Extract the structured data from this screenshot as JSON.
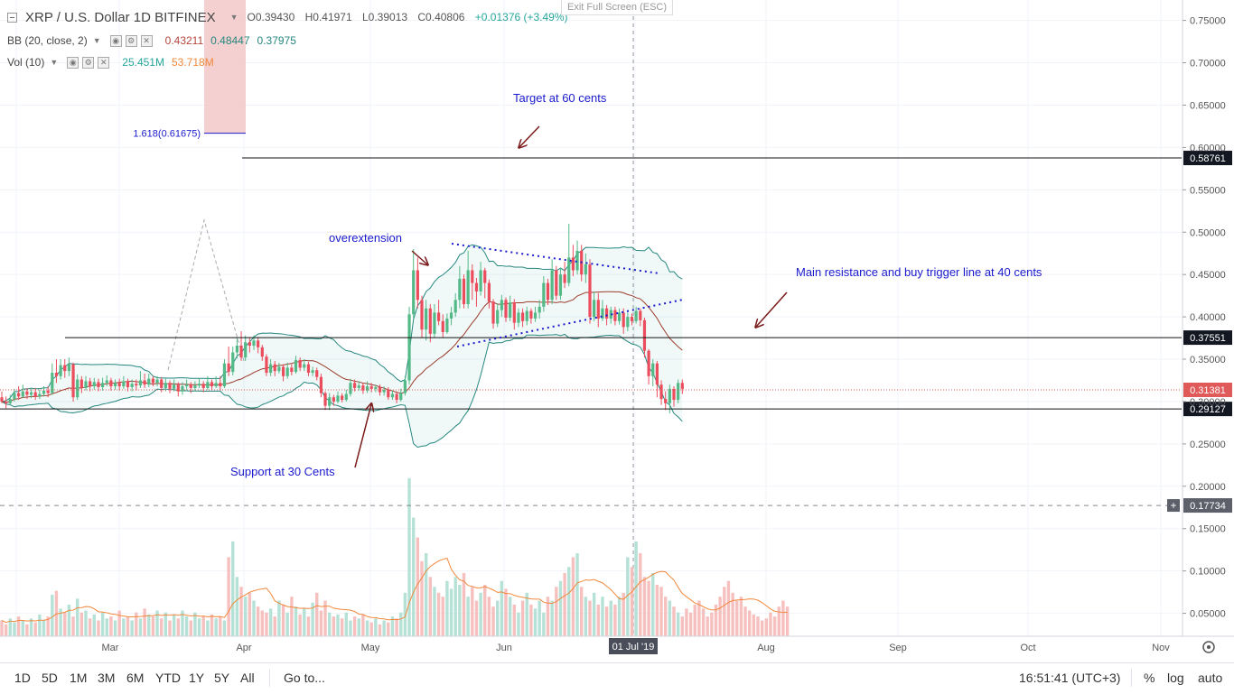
{
  "header": {
    "symbol": "XRP / U.S. Dollar  1D  BITFINEX",
    "open": "O0.39430",
    "high": "H0.41971",
    "low": "L0.39013",
    "close": "C0.40806",
    "change": "+0.01376 (+3.49%)",
    "bb_label": "BB (20, close, 2)",
    "bb_values": [
      "0.43211",
      "0.48447",
      "0.37975"
    ],
    "vol_label": "Vol (10)",
    "vol_values": [
      "25.451M",
      "53.718M"
    ],
    "exit_fullscreen": "Exit Full Screen (ESC)"
  },
  "bottom": {
    "timeframes": [
      "1D",
      "5D",
      "1M",
      "3M",
      "6M",
      "YTD",
      "1Y",
      "5Y",
      "All"
    ],
    "goto": "Go to...",
    "clock": "16:51:41 (UTC+3)",
    "pct": "%",
    "log": "log",
    "auto": "auto"
  },
  "colors": {
    "up": "#26a69a",
    "down": "#ef5350",
    "annotation": "#1a1acc",
    "arrow": "#7a1a1a",
    "bb_band": "#26877f",
    "bb_mid": "#9c3b2b",
    "vol_ma": "#f2883a"
  },
  "chart_data": {
    "type": "candlestick",
    "title": "XRP / U.S. Dollar  1D  BITFINEX",
    "y_range": [
      0.0,
      0.77
    ],
    "price_ticks": [
      "0.75000",
      "0.70000",
      "0.65000",
      "0.60000",
      "0.55000",
      "0.50000",
      "0.45000",
      "0.40000",
      "0.35000",
      "0.30000",
      "0.25000",
      "0.20000",
      "0.15000",
      "0.10000",
      "0.05000"
    ],
    "x_labels": [
      "Mar",
      "Apr",
      "May",
      "Jun",
      "01 Jul '19",
      "Aug",
      "Sep",
      "Oct",
      "Nov"
    ],
    "x_range_days": [
      0,
      300
    ],
    "date_index_note_start": "2019-02-01",
    "highlighted_x_label": "01 Jul '19",
    "candles": [
      [
        0.305,
        0.3,
        0.312,
        0.298
      ],
      [
        0.3,
        0.298,
        0.306,
        0.292
      ],
      [
        0.298,
        0.303,
        0.308,
        0.296
      ],
      [
        0.303,
        0.31,
        0.315,
        0.3
      ],
      [
        0.31,
        0.306,
        0.318,
        0.302
      ],
      [
        0.306,
        0.312,
        0.32,
        0.304
      ],
      [
        0.312,
        0.308,
        0.316,
        0.303
      ],
      [
        0.308,
        0.311,
        0.316,
        0.304
      ],
      [
        0.311,
        0.306,
        0.316,
        0.302
      ],
      [
        0.306,
        0.309,
        0.314,
        0.303
      ],
      [
        0.309,
        0.313,
        0.318,
        0.306
      ],
      [
        0.313,
        0.31,
        0.318,
        0.305
      ],
      [
        0.31,
        0.334,
        0.345,
        0.308
      ],
      [
        0.334,
        0.33,
        0.35,
        0.322
      ],
      [
        0.33,
        0.343,
        0.35,
        0.326
      ],
      [
        0.343,
        0.336,
        0.35,
        0.328
      ],
      [
        0.336,
        0.344,
        0.352,
        0.33
      ],
      [
        0.344,
        0.305,
        0.346,
        0.3
      ],
      [
        0.305,
        0.326,
        0.332,
        0.302
      ],
      [
        0.326,
        0.316,
        0.33,
        0.31
      ],
      [
        0.316,
        0.324,
        0.33,
        0.313
      ],
      [
        0.324,
        0.318,
        0.328,
        0.312
      ],
      [
        0.318,
        0.323,
        0.328,
        0.314
      ],
      [
        0.323,
        0.317,
        0.327,
        0.312
      ],
      [
        0.317,
        0.322,
        0.328,
        0.313
      ],
      [
        0.322,
        0.325,
        0.331,
        0.318
      ],
      [
        0.325,
        0.318,
        0.328,
        0.313
      ],
      [
        0.318,
        0.322,
        0.326,
        0.314
      ],
      [
        0.322,
        0.318,
        0.327,
        0.313
      ],
      [
        0.318,
        0.324,
        0.33,
        0.315
      ],
      [
        0.324,
        0.317,
        0.327,
        0.312
      ],
      [
        0.317,
        0.321,
        0.326,
        0.312
      ],
      [
        0.321,
        0.319,
        0.326,
        0.313
      ],
      [
        0.319,
        0.325,
        0.336,
        0.316
      ],
      [
        0.325,
        0.32,
        0.333,
        0.316
      ],
      [
        0.32,
        0.327,
        0.333,
        0.317
      ],
      [
        0.327,
        0.322,
        0.33,
        0.318
      ],
      [
        0.322,
        0.326,
        0.33,
        0.318
      ],
      [
        0.326,
        0.316,
        0.329,
        0.311
      ],
      [
        0.316,
        0.322,
        0.327,
        0.312
      ],
      [
        0.322,
        0.315,
        0.325,
        0.31
      ],
      [
        0.315,
        0.32,
        0.326,
        0.312
      ],
      [
        0.32,
        0.312,
        0.323,
        0.306
      ],
      [
        0.312,
        0.318,
        0.323,
        0.308
      ],
      [
        0.318,
        0.32,
        0.326,
        0.314
      ],
      [
        0.32,
        0.316,
        0.323,
        0.31
      ],
      [
        0.316,
        0.319,
        0.324,
        0.312
      ],
      [
        0.319,
        0.321,
        0.327,
        0.316
      ],
      [
        0.321,
        0.316,
        0.324,
        0.311
      ],
      [
        0.316,
        0.323,
        0.33,
        0.314
      ],
      [
        0.323,
        0.318,
        0.326,
        0.314
      ],
      [
        0.318,
        0.322,
        0.33,
        0.316
      ],
      [
        0.322,
        0.318,
        0.33,
        0.313
      ],
      [
        0.318,
        0.345,
        0.35,
        0.316
      ],
      [
        0.345,
        0.335,
        0.365,
        0.33
      ],
      [
        0.335,
        0.358,
        0.365,
        0.331
      ],
      [
        0.358,
        0.366,
        0.375,
        0.351
      ],
      [
        0.366,
        0.352,
        0.383,
        0.348
      ],
      [
        0.352,
        0.37,
        0.378,
        0.348
      ],
      [
        0.37,
        0.366,
        0.376,
        0.358
      ],
      [
        0.366,
        0.372,
        0.378,
        0.361
      ],
      [
        0.372,
        0.364,
        0.376,
        0.357
      ],
      [
        0.364,
        0.353,
        0.367,
        0.348
      ],
      [
        0.353,
        0.334,
        0.356,
        0.33
      ],
      [
        0.334,
        0.344,
        0.35,
        0.33
      ],
      [
        0.344,
        0.336,
        0.348,
        0.33
      ],
      [
        0.336,
        0.341,
        0.346,
        0.333
      ],
      [
        0.341,
        0.33,
        0.344,
        0.324
      ],
      [
        0.33,
        0.34,
        0.346,
        0.327
      ],
      [
        0.34,
        0.335,
        0.344,
        0.331
      ],
      [
        0.335,
        0.349,
        0.354,
        0.333
      ],
      [
        0.349,
        0.34,
        0.352,
        0.336
      ],
      [
        0.34,
        0.344,
        0.35,
        0.336
      ],
      [
        0.344,
        0.334,
        0.347,
        0.33
      ],
      [
        0.334,
        0.337,
        0.341,
        0.33
      ],
      [
        0.337,
        0.329,
        0.34,
        0.325
      ],
      [
        0.329,
        0.31,
        0.333,
        0.305
      ],
      [
        0.31,
        0.295,
        0.312,
        0.29
      ],
      [
        0.295,
        0.305,
        0.31,
        0.29
      ],
      [
        0.305,
        0.3,
        0.308,
        0.295
      ],
      [
        0.3,
        0.307,
        0.312,
        0.298
      ],
      [
        0.307,
        0.302,
        0.31,
        0.299
      ],
      [
        0.302,
        0.309,
        0.314,
        0.3
      ],
      [
        0.309,
        0.322,
        0.327,
        0.306
      ],
      [
        0.322,
        0.316,
        0.326,
        0.312
      ],
      [
        0.316,
        0.319,
        0.324,
        0.313
      ],
      [
        0.319,
        0.313,
        0.322,
        0.309
      ],
      [
        0.313,
        0.318,
        0.324,
        0.31
      ],
      [
        0.318,
        0.315,
        0.322,
        0.311
      ],
      [
        0.315,
        0.317,
        0.32,
        0.311
      ],
      [
        0.317,
        0.311,
        0.32,
        0.307
      ],
      [
        0.311,
        0.314,
        0.318,
        0.307
      ],
      [
        0.314,
        0.305,
        0.317,
        0.302
      ],
      [
        0.305,
        0.309,
        0.313,
        0.302
      ],
      [
        0.309,
        0.302,
        0.312,
        0.298
      ],
      [
        0.302,
        0.31,
        0.315,
        0.3
      ],
      [
        0.31,
        0.325,
        0.33,
        0.307
      ],
      [
        0.325,
        0.403,
        0.412,
        0.32
      ],
      [
        0.403,
        0.455,
        0.48,
        0.398
      ],
      [
        0.455,
        0.42,
        0.47,
        0.41
      ],
      [
        0.42,
        0.385,
        0.425,
        0.375
      ],
      [
        0.385,
        0.41,
        0.42,
        0.372
      ],
      [
        0.41,
        0.38,
        0.415,
        0.37
      ],
      [
        0.38,
        0.405,
        0.415,
        0.375
      ],
      [
        0.405,
        0.395,
        0.42,
        0.39
      ],
      [
        0.395,
        0.382,
        0.403,
        0.376
      ],
      [
        0.382,
        0.398,
        0.404,
        0.38
      ],
      [
        0.398,
        0.405,
        0.412,
        0.39
      ],
      [
        0.405,
        0.42,
        0.428,
        0.4
      ],
      [
        0.42,
        0.445,
        0.46,
        0.41
      ],
      [
        0.445,
        0.415,
        0.45,
        0.41
      ],
      [
        0.415,
        0.455,
        0.478,
        0.41
      ],
      [
        0.455,
        0.44,
        0.462,
        0.42
      ],
      [
        0.44,
        0.43,
        0.446,
        0.412
      ],
      [
        0.43,
        0.455,
        0.465,
        0.425
      ],
      [
        0.455,
        0.44,
        0.458,
        0.422
      ],
      [
        0.44,
        0.418,
        0.444,
        0.41
      ],
      [
        0.418,
        0.392,
        0.421,
        0.386
      ],
      [
        0.392,
        0.408,
        0.416,
        0.388
      ],
      [
        0.408,
        0.42,
        0.426,
        0.4
      ],
      [
        0.42,
        0.399,
        0.423,
        0.394
      ],
      [
        0.399,
        0.417,
        0.425,
        0.395
      ],
      [
        0.417,
        0.393,
        0.421,
        0.385
      ],
      [
        0.393,
        0.405,
        0.41,
        0.388
      ],
      [
        0.405,
        0.395,
        0.41,
        0.388
      ],
      [
        0.395,
        0.407,
        0.412,
        0.39
      ],
      [
        0.407,
        0.398,
        0.41,
        0.392
      ],
      [
        0.398,
        0.405,
        0.412,
        0.394
      ],
      [
        0.405,
        0.412,
        0.42,
        0.398
      ],
      [
        0.412,
        0.44,
        0.448,
        0.406
      ],
      [
        0.44,
        0.42,
        0.445,
        0.414
      ],
      [
        0.42,
        0.455,
        0.468,
        0.415
      ],
      [
        0.455,
        0.425,
        0.46,
        0.42
      ],
      [
        0.425,
        0.45,
        0.458,
        0.42
      ],
      [
        0.45,
        0.44,
        0.465,
        0.434
      ],
      [
        0.44,
        0.47,
        0.51,
        0.436
      ],
      [
        0.47,
        0.455,
        0.485,
        0.448
      ],
      [
        0.455,
        0.478,
        0.49,
        0.45
      ],
      [
        0.478,
        0.45,
        0.485,
        0.442
      ],
      [
        0.45,
        0.462,
        0.475,
        0.44
      ],
      [
        0.462,
        0.4,
        0.468,
        0.392
      ],
      [
        0.4,
        0.42,
        0.43,
        0.395
      ],
      [
        0.42,
        0.398,
        0.428,
        0.388
      ],
      [
        0.398,
        0.41,
        0.42,
        0.395
      ],
      [
        0.41,
        0.398,
        0.414,
        0.39
      ],
      [
        0.398,
        0.408,
        0.412,
        0.392
      ],
      [
        0.408,
        0.395,
        0.412,
        0.39
      ],
      [
        0.395,
        0.405,
        0.41,
        0.391
      ],
      [
        0.405,
        0.388,
        0.41,
        0.38
      ],
      [
        0.388,
        0.4,
        0.405,
        0.383
      ],
      [
        0.4,
        0.395,
        0.404,
        0.39
      ],
      [
        0.395,
        0.407,
        0.412,
        0.392
      ],
      [
        0.407,
        0.396,
        0.41,
        0.389
      ],
      [
        0.396,
        0.36,
        0.399,
        0.352
      ],
      [
        0.36,
        0.33,
        0.362,
        0.32
      ],
      [
        0.33,
        0.345,
        0.35,
        0.318
      ],
      [
        0.345,
        0.32,
        0.348,
        0.305
      ],
      [
        0.32,
        0.303,
        0.325,
        0.296
      ],
      [
        0.303,
        0.298,
        0.312,
        0.29
      ],
      [
        0.298,
        0.315,
        0.32,
        0.286
      ],
      [
        0.315,
        0.302,
        0.318,
        0.294
      ],
      [
        0.302,
        0.322,
        0.326,
        0.298
      ],
      [
        0.322,
        0.315,
        0.326,
        0.309
      ]
    ],
    "volume_m": [
      8,
      6,
      9,
      7,
      10,
      8,
      6,
      9,
      7,
      11,
      8,
      10,
      21,
      23,
      14,
      12,
      16,
      10,
      19,
      12,
      13,
      9,
      11,
      8,
      12,
      9,
      10,
      8,
      13,
      9,
      10,
      8,
      12,
      9,
      14,
      11,
      10,
      13,
      9,
      12,
      8,
      11,
      9,
      13,
      10,
      8,
      12,
      9,
      10,
      8,
      11,
      9,
      10,
      8,
      40,
      48,
      30,
      25,
      20,
      22,
      18,
      15,
      13,
      12,
      14,
      10,
      18,
      16,
      12,
      20,
      15,
      11,
      14,
      10,
      17,
      22,
      13,
      18,
      12,
      10,
      11,
      9,
      12,
      8,
      10,
      9,
      11,
      8,
      7,
      9,
      6,
      8,
      7,
      10,
      9,
      12,
      22,
      80,
      60,
      50,
      38,
      42,
      30,
      25,
      22,
      20,
      28,
      24,
      30,
      26,
      32,
      20,
      25,
      18,
      22,
      26,
      20,
      15,
      18,
      28,
      24,
      20,
      16,
      12,
      18,
      22,
      16,
      14,
      18,
      12,
      20,
      18,
      25,
      28,
      32,
      35,
      40,
      42,
      25,
      20,
      18,
      22,
      16,
      20,
      15,
      18,
      16,
      20,
      22,
      40,
      35,
      48,
      42,
      30,
      28,
      32,
      26,
      25,
      20,
      18,
      15,
      12,
      10,
      14,
      12,
      16,
      18,
      14,
      10,
      12,
      16,
      20,
      25,
      28,
      22,
      18,
      20,
      15,
      13,
      11,
      10,
      8,
      9,
      12,
      10,
      15,
      18,
      15
    ],
    "levels": [
      {
        "label": "0.58761",
        "value": 0.58761,
        "style": "solid"
      },
      {
        "label": "0.37551",
        "value": 0.37551,
        "style": "solid"
      },
      {
        "label": "0.29127",
        "value": 0.29127,
        "style": "solid"
      },
      {
        "label": "0.31381",
        "value": 0.31381,
        "style": "dotted"
      },
      {
        "label": "0.17734",
        "value": 0.17734,
        "style": "dashed"
      }
    ],
    "fib_label": "1.618(0.61675)",
    "annotations": [
      {
        "text": "Target at 60 cents"
      },
      {
        "text": "overextension"
      },
      {
        "text": "Main resistance and buy trigger line at 40 cents"
      },
      {
        "text": "Support at 30 Cents"
      }
    ]
  }
}
